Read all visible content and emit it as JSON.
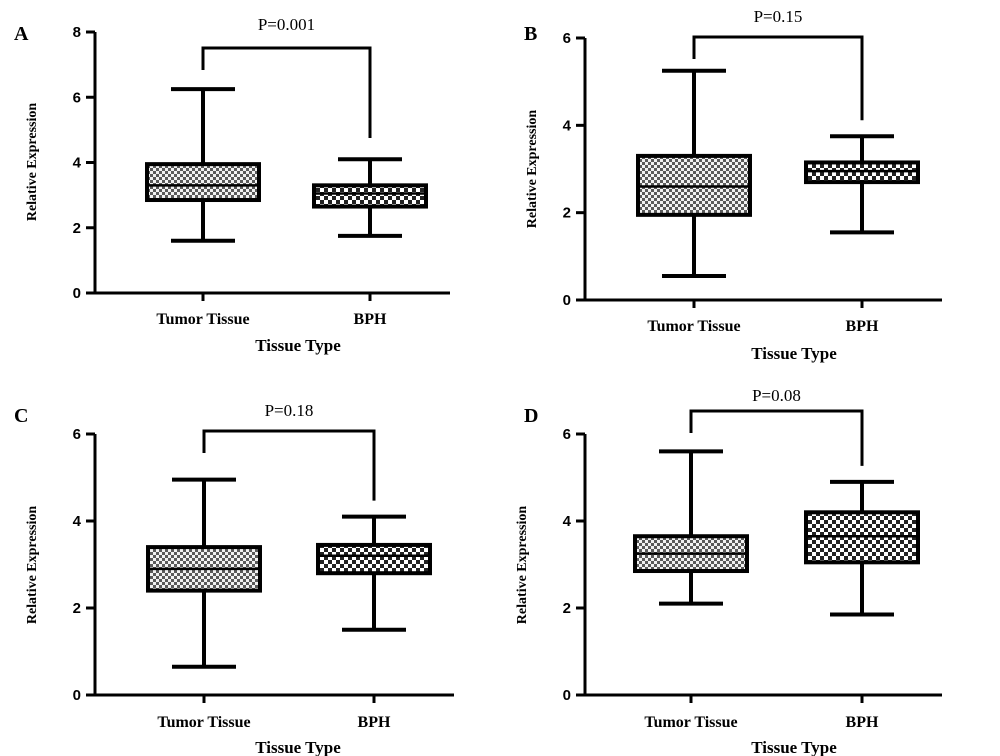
{
  "chart_data": [
    {
      "panel": "A",
      "type": "box",
      "categories": [
        "Tumor Tissue",
        "BPH"
      ],
      "boxes": [
        {
          "min": 1.6,
          "q1": 2.85,
          "median": 3.3,
          "q3": 3.95,
          "max": 6.25,
          "pattern": "coarse"
        },
        {
          "min": 1.75,
          "q1": 2.65,
          "median": 3.05,
          "q3": 3.3,
          "max": 4.1,
          "pattern": "check"
        }
      ],
      "xlabel": "Tissue Type",
      "ylabel": "Relative Expression",
      "ylim": [
        0,
        8
      ],
      "yticks": [
        0,
        2,
        4,
        6,
        8
      ],
      "annotation": "P=0.001"
    },
    {
      "panel": "B",
      "type": "box",
      "categories": [
        "Tumor Tissue",
        "BPH"
      ],
      "boxes": [
        {
          "min": 0.55,
          "q1": 1.95,
          "median": 2.6,
          "q3": 3.3,
          "max": 5.25,
          "pattern": "coarse"
        },
        {
          "min": 1.55,
          "q1": 2.7,
          "median": 2.95,
          "q3": 3.15,
          "max": 3.75,
          "pattern": "check"
        }
      ],
      "xlabel": "Tissue Type",
      "ylabel": "Relative Expression",
      "ylim": [
        0,
        6
      ],
      "yticks": [
        0,
        2,
        4,
        6
      ],
      "annotation": "P=0.15"
    },
    {
      "panel": "C",
      "type": "box",
      "categories": [
        "Tumor Tissue",
        "BPH"
      ],
      "boxes": [
        {
          "min": 0.65,
          "q1": 2.4,
          "median": 2.9,
          "q3": 3.4,
          "max": 4.95,
          "pattern": "coarse"
        },
        {
          "min": 1.5,
          "q1": 2.8,
          "median": 3.2,
          "q3": 3.45,
          "max": 4.1,
          "pattern": "check"
        }
      ],
      "xlabel": "Tissue Type",
      "ylabel": "Relative Expression",
      "ylim": [
        0,
        6
      ],
      "yticks": [
        0,
        2,
        4,
        6
      ],
      "annotation": "P=0.18"
    },
    {
      "panel": "D",
      "type": "box",
      "categories": [
        "Tumor Tissue",
        "BPH"
      ],
      "boxes": [
        {
          "min": 2.1,
          "q1": 2.85,
          "median": 3.25,
          "q3": 3.65,
          "max": 5.6,
          "pattern": "coarse"
        },
        {
          "min": 1.85,
          "q1": 3.05,
          "median": 3.65,
          "q3": 4.2,
          "max": 4.9,
          "pattern": "check"
        }
      ],
      "xlabel": "Tissue Type",
      "ylabel": "Relative Expression",
      "ylim": [
        0,
        6
      ],
      "yticks": [
        0,
        2,
        4,
        6
      ],
      "annotation": "P=0.08"
    }
  ],
  "colors": {
    "ink": "#000000",
    "coarse_light": "#f2f2f2",
    "coarse_dark": "#5a5a5a",
    "check_light": "#ffffff",
    "check_dark": "#222222"
  }
}
